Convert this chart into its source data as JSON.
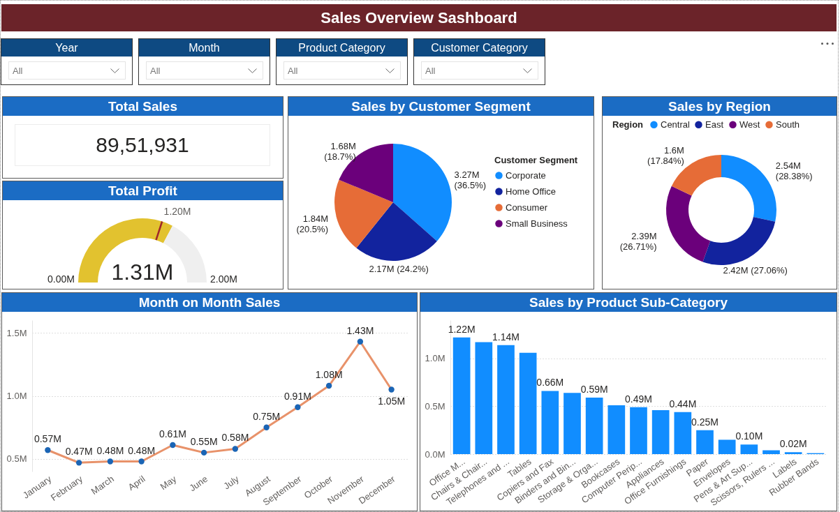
{
  "chart_data": [
    {
      "type": "other",
      "title": "Sales Overview Sashboard",
      "annotations": [
        "Year",
        "All",
        "Month",
        "All",
        "Product Category",
        "All",
        "Customer Category",
        "All"
      ]
    },
    {
      "type": "other",
      "title": "Total Sales",
      "annotations": [
        "89,51,931"
      ]
    },
    {
      "type": "donut",
      "title": "Total Profit",
      "categories": [
        null,
        null,
        null
      ],
      "values": [
        60,
        5.5,
        34.5
      ],
      "colors": [
        "#e2c22f",
        "#e2c22f",
        "#efefef"
      ],
      "annotations": [
        "1.31M",
        "1.20M",
        "0.00M",
        "2.00M"
      ]
    },
    {
      "type": "pie",
      "title": "Sales by Customer Segment",
      "legend_title": "Customer Segment",
      "legend": "right",
      "categories": [
        "Corporate",
        "Home Office",
        "Consumer",
        "Small Business"
      ],
      "values": [
        36.5,
        24.2,
        20.5,
        18.7
      ],
      "colors": [
        "#118dff",
        "#12239e",
        "#e66c37",
        "#6b007b"
      ],
      "value_labels": [
        "3.27M (36.5%)",
        "2.17M (24.2%)",
        "1.84M (20.5%)",
        "1.68M (18.7%)"
      ]
    },
    {
      "type": "donut",
      "title": "Sales by Region",
      "legend_title": "Region",
      "legend": "top",
      "categories": [
        "Central",
        "East",
        "West",
        "South"
      ],
      "values": [
        28.38,
        27.06,
        26.71,
        17.84
      ],
      "colors": [
        "#118dff",
        "#12239e",
        "#6b007b",
        "#e66c37"
      ],
      "value_labels": [
        "2.54M (28.38%)",
        "2.42M (27.06%)",
        "2.39M (26.71%)",
        "1.6M (17.84%)"
      ]
    },
    {
      "type": "line",
      "title": "Month on Month Sales",
      "categories": [
        "January",
        "February",
        "March",
        "April",
        "May",
        "June",
        "July",
        "August",
        "September",
        "October",
        "November",
        "December"
      ],
      "series": [
        {
          "color": "#e8926a",
          "colors": [
            "#1b65b5",
            "#1b65b5",
            "#1b65b5",
            "#1b65b5",
            "#1b65b5",
            "#1b65b5",
            "#1b65b5",
            "#1b65b5",
            "#1b65b5",
            "#1b65b5",
            "#1b65b5",
            "#1b65b5"
          ],
          "values": [
            0.57,
            0.47,
            0.48,
            0.48,
            0.61,
            0.55,
            0.58,
            0.75,
            0.91,
            1.08,
            1.43,
            1.05
          ],
          "value_labels": [
            "0.57M",
            "0.47M",
            "0.48M",
            "0.48M",
            "0.61M",
            "0.55M",
            "0.58M",
            "0.75M",
            "0.91M",
            "1.08M",
            "1.43M",
            "1.05M"
          ]
        }
      ],
      "ylim": [
        0.4,
        1.6
      ],
      "yticks": [
        {
          "value": 0.5,
          "label": "0.5M"
        },
        {
          "value": 1,
          "label": "1.0M"
        },
        {
          "value": 1.5,
          "label": "1.5M"
        }
      ],
      "grid": "y",
      "marker": "circle",
      "line_style": "solid"
    },
    {
      "type": "bar",
      "title": "Sales by Product Sub-Category",
      "categories": [
        "Office M...",
        "Chairs & Chair...",
        "Telephones and ...",
        "Tables",
        "Copiers and Fax",
        "Binders and Bin...",
        "Storage & Orga...",
        "Bookcases",
        "Computer Perip...",
        "Appliances",
        "Office Furnishings",
        "Paper",
        "Envelopes",
        "Pens & Art Sup...",
        "Scissors, Rulers ...",
        "Labels",
        "Rubber Bands"
      ],
      "values": [
        1.22,
        1.17,
        1.14,
        1.06,
        0.66,
        0.64,
        0.59,
        0.51,
        0.49,
        0.46,
        0.44,
        0.25,
        0.15,
        0.1,
        0.04,
        0.02,
        0.01
      ],
      "value_labels": [
        "1.22M",
        null,
        "1.14M",
        null,
        "0.66M",
        null,
        "0.59M",
        null,
        "0.49M",
        null,
        "0.44M",
        "0.25M",
        null,
        "0.10M",
        null,
        "0.02M",
        null
      ],
      "color": "#118dff",
      "ylim": [
        0,
        1.4
      ],
      "yticks": [
        {
          "value": 0,
          "label": "0.0M"
        },
        {
          "value": 0.5,
          "label": "0.5M"
        },
        {
          "value": 1,
          "label": "1.0M"
        }
      ],
      "grid": "y"
    }
  ]
}
